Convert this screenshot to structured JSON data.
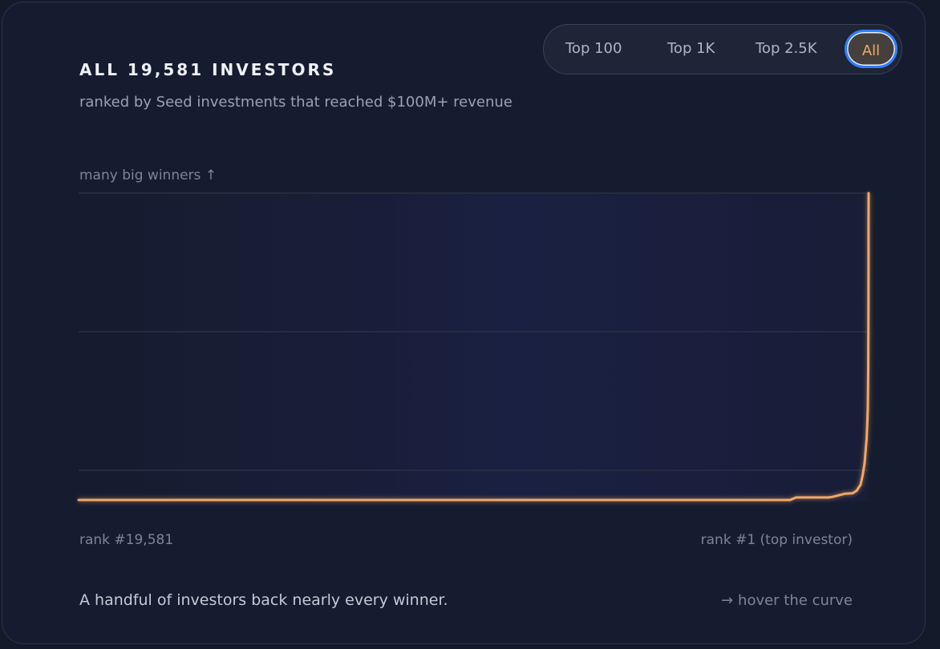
{
  "card": {
    "title": "ALL 19,581 INVESTORS",
    "subtitle": "ranked by Seed investments that reached $100M+ revenue"
  },
  "range_toggle": {
    "options": [
      "Top 100",
      "Top 1K",
      "Top 2.5K",
      "All"
    ],
    "selected": "All"
  },
  "axis_hint": "many big winners ↑",
  "x_axis": {
    "left_label": "rank #19,581",
    "right_label": "rank #1 (top investor)"
  },
  "caption": "A handful of investors back nearly every winner.",
  "hover_hint": {
    "icon": "arrow-right-icon",
    "text": "hover the curve"
  },
  "colors": {
    "background": "#141a2a",
    "card": "#161c2f",
    "curve": "#f2a766",
    "gridline": "#2a3144",
    "active_border": "#2f7fff",
    "active_text": "#f0a868"
  },
  "chart_data": {
    "type": "line",
    "x_direction": "rank 19,581 on the left to rank 1 on the right",
    "grid": true,
    "ylim": [
      0,
      1
    ],
    "series": [
      {
        "x": [
          19581,
          1950,
          1800,
          1000,
          900,
          600,
          400,
          300,
          200,
          150,
          100,
          50,
          30,
          20,
          10,
          5,
          3,
          2,
          1
        ],
        "y": [
          0,
          0,
          0.008,
          0.008,
          0.01,
          0.02,
          0.022,
          0.03,
          0.05,
          0.08,
          0.12,
          0.2,
          0.26,
          0.3,
          0.42,
          0.62,
          0.8,
          0.9,
          1.0
        ]
      }
    ]
  }
}
